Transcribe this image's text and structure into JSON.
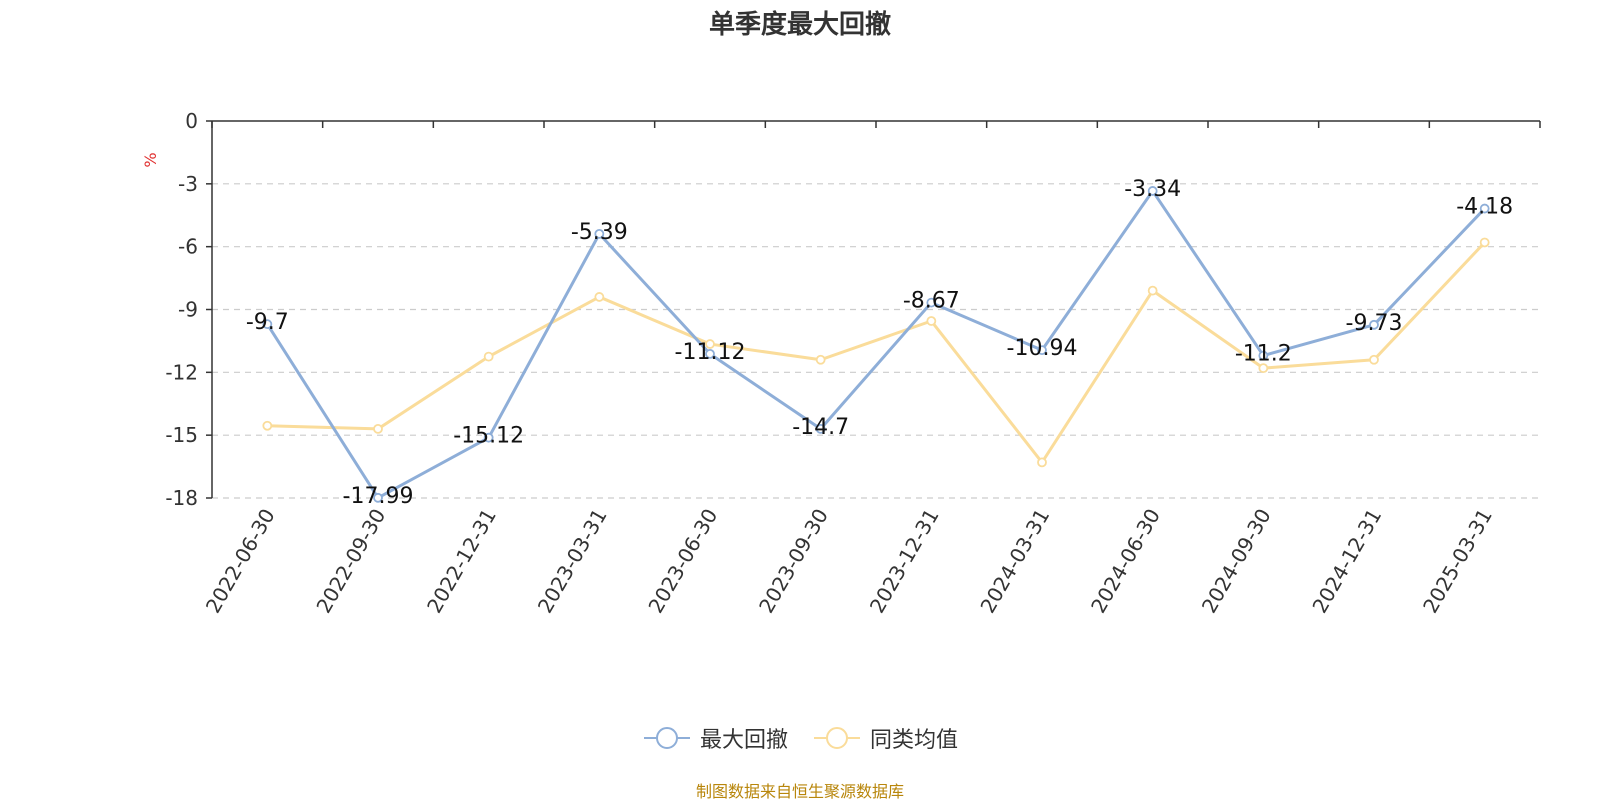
{
  "chart_data": {
    "type": "line",
    "title": "单季度最大回撤",
    "ylabel": "%",
    "categories": [
      "2022-06-30",
      "2022-09-30",
      "2022-12-31",
      "2023-03-31",
      "2023-06-30",
      "2023-09-30",
      "2023-12-31",
      "2024-03-31",
      "2024-06-30",
      "2024-09-30",
      "2024-12-31",
      "2025-03-31"
    ],
    "series": [
      {
        "name": "最大回撤",
        "color": "#8eaed8",
        "values": [
          -9.7,
          -17.99,
          -15.12,
          -5.39,
          -11.12,
          -14.7,
          -8.67,
          -10.94,
          -3.34,
          -11.2,
          -9.73,
          -4.18
        ],
        "show_labels": true
      },
      {
        "name": "同类均值",
        "color": "#fadc9a",
        "values": [
          -14.55,
          -14.7,
          -11.25,
          -8.4,
          -10.65,
          -11.4,
          -9.55,
          -16.3,
          -8.1,
          -11.8,
          -11.4,
          -5.8
        ],
        "show_labels": false
      }
    ],
    "ylim": [
      -18,
      0
    ],
    "yticks": [
      0,
      -3,
      -6,
      -9,
      -12,
      -15,
      -18
    ],
    "grid": true,
    "legend": "bottom-center"
  },
  "source_text": "制图数据来自恒生聚源数据库"
}
